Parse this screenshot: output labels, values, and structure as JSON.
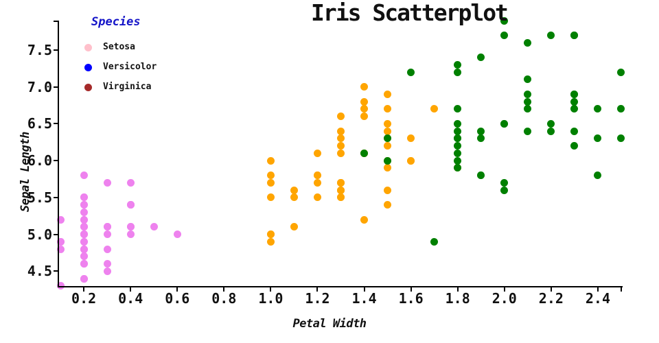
{
  "title": "Iris Scatterplot",
  "legend": {
    "title": "Species",
    "title_color": "#1414C8",
    "items": [
      {
        "label": "Setosa",
        "color": "#FFC0CB"
      },
      {
        "label": "Versicolor",
        "color": "#0000FF"
      },
      {
        "label": "Virginica",
        "color": "#A52A2A"
      }
    ]
  },
  "axes": {
    "xlabel": "Petal Width",
    "ylabel": "Sepal Length",
    "x_ticks": [
      "0.2",
      "0.4",
      "0.6",
      "0.8",
      "1.0",
      "1.2",
      "1.4",
      "1.6",
      "1.8",
      "2.0",
      "2.2",
      "2.4"
    ],
    "y_ticks": [
      "4.5",
      "5.0",
      "5.5",
      "6.0",
      "6.5",
      "7.0",
      "7.5"
    ]
  },
  "chart_data": {
    "type": "scatter",
    "title": "Iris Scatterplot",
    "xlabel": "Petal Width",
    "ylabel": "Sepal Length",
    "xlim": [
      0.091,
      2.503
    ],
    "ylim": [
      4.285,
      7.9
    ],
    "grid": false,
    "legend_position": "upper left",
    "series": [
      {
        "name": "Setosa",
        "color": "#EE82EE",
        "points": [
          [
            0.2,
            5.1
          ],
          [
            0.2,
            4.9
          ],
          [
            0.2,
            4.7
          ],
          [
            0.2,
            4.6
          ],
          [
            0.2,
            5.0
          ],
          [
            0.4,
            5.4
          ],
          [
            0.3,
            4.6
          ],
          [
            0.2,
            5.0
          ],
          [
            0.2,
            4.4
          ],
          [
            0.1,
            4.9
          ],
          [
            0.2,
            5.4
          ],
          [
            0.2,
            4.8
          ],
          [
            0.1,
            4.8
          ],
          [
            0.1,
            4.3
          ],
          [
            0.2,
            5.8
          ],
          [
            0.4,
            5.7
          ],
          [
            0.4,
            5.4
          ],
          [
            0.3,
            5.1
          ],
          [
            0.3,
            5.7
          ],
          [
            0.3,
            5.1
          ],
          [
            0.2,
            5.4
          ],
          [
            0.4,
            5.1
          ],
          [
            0.2,
            4.6
          ],
          [
            0.5,
            5.1
          ],
          [
            0.2,
            4.8
          ],
          [
            0.2,
            5.0
          ],
          [
            0.4,
            5.0
          ],
          [
            0.2,
            5.2
          ],
          [
            0.2,
            5.2
          ],
          [
            0.2,
            4.7
          ],
          [
            0.2,
            4.8
          ],
          [
            0.4,
            5.4
          ],
          [
            0.1,
            5.2
          ],
          [
            0.2,
            5.5
          ],
          [
            0.2,
            4.9
          ],
          [
            0.2,
            5.0
          ],
          [
            0.2,
            5.5
          ],
          [
            0.1,
            4.9
          ],
          [
            0.2,
            4.4
          ],
          [
            0.2,
            5.1
          ],
          [
            0.3,
            5.0
          ],
          [
            0.3,
            4.5
          ],
          [
            0.2,
            4.4
          ],
          [
            0.6,
            5.0
          ],
          [
            0.4,
            5.1
          ],
          [
            0.3,
            4.8
          ],
          [
            0.2,
            5.1
          ],
          [
            0.2,
            4.6
          ],
          [
            0.2,
            5.3
          ],
          [
            0.2,
            5.0
          ]
        ]
      },
      {
        "name": "Versicolor",
        "color": "#FFA500",
        "points": [
          [
            1.4,
            7.0
          ],
          [
            1.5,
            6.4
          ],
          [
            1.5,
            6.9
          ],
          [
            1.3,
            5.5
          ],
          [
            1.5,
            6.5
          ],
          [
            1.3,
            5.7
          ],
          [
            1.6,
            6.3
          ],
          [
            1.0,
            4.9
          ],
          [
            1.3,
            6.6
          ],
          [
            1.4,
            5.2
          ],
          [
            1.0,
            5.0
          ],
          [
            1.5,
            5.9
          ],
          [
            1.0,
            6.0
          ],
          [
            1.4,
            6.1
          ],
          [
            1.3,
            5.6
          ],
          [
            1.4,
            6.7
          ],
          [
            1.5,
            5.6
          ],
          [
            1.0,
            5.8
          ],
          [
            1.5,
            6.2
          ],
          [
            1.1,
            5.6
          ],
          [
            1.8,
            5.9
          ],
          [
            1.3,
            6.1
          ],
          [
            1.5,
            6.3
          ],
          [
            1.2,
            6.1
          ],
          [
            1.3,
            6.4
          ],
          [
            1.4,
            6.6
          ],
          [
            1.4,
            6.8
          ],
          [
            1.7,
            6.7
          ],
          [
            1.5,
            6.0
          ],
          [
            1.0,
            5.7
          ],
          [
            1.1,
            5.5
          ],
          [
            1.0,
            5.5
          ],
          [
            1.2,
            5.8
          ],
          [
            1.6,
            6.0
          ],
          [
            1.5,
            5.4
          ],
          [
            1.6,
            6.0
          ],
          [
            1.5,
            6.7
          ],
          [
            1.3,
            6.3
          ],
          [
            1.3,
            5.6
          ],
          [
            1.3,
            5.5
          ],
          [
            1.2,
            5.5
          ],
          [
            1.4,
            6.1
          ],
          [
            1.2,
            5.8
          ],
          [
            1.0,
            5.0
          ],
          [
            1.3,
            5.6
          ],
          [
            1.2,
            5.7
          ],
          [
            1.3,
            5.7
          ],
          [
            1.3,
            6.2
          ],
          [
            1.1,
            5.1
          ],
          [
            1.3,
            5.7
          ]
        ]
      },
      {
        "name": "Virginica",
        "color": "#008000",
        "points": [
          [
            2.5,
            6.3
          ],
          [
            1.9,
            5.8
          ],
          [
            2.1,
            7.1
          ],
          [
            1.8,
            6.3
          ],
          [
            2.2,
            6.5
          ],
          [
            2.1,
            7.6
          ],
          [
            1.7,
            4.9
          ],
          [
            1.8,
            7.3
          ],
          [
            1.8,
            6.7
          ],
          [
            2.5,
            7.2
          ],
          [
            2.0,
            6.5
          ],
          [
            1.9,
            6.4
          ],
          [
            2.1,
            6.8
          ],
          [
            2.0,
            5.7
          ],
          [
            2.4,
            5.8
          ],
          [
            2.3,
            6.4
          ],
          [
            1.8,
            6.5
          ],
          [
            2.2,
            7.7
          ],
          [
            2.3,
            7.7
          ],
          [
            1.5,
            6.0
          ],
          [
            2.3,
            6.9
          ],
          [
            2.0,
            5.6
          ],
          [
            2.0,
            7.7
          ],
          [
            1.8,
            6.3
          ],
          [
            2.1,
            6.7
          ],
          [
            1.8,
            7.2
          ],
          [
            1.8,
            6.2
          ],
          [
            1.8,
            6.1
          ],
          [
            2.1,
            6.4
          ],
          [
            1.6,
            7.2
          ],
          [
            1.9,
            7.4
          ],
          [
            2.0,
            7.9
          ],
          [
            2.2,
            6.4
          ],
          [
            1.5,
            6.3
          ],
          [
            1.4,
            6.1
          ],
          [
            2.3,
            7.7
          ],
          [
            2.4,
            6.3
          ],
          [
            1.8,
            6.4
          ],
          [
            1.8,
            6.0
          ],
          [
            2.1,
            6.9
          ],
          [
            2.4,
            6.7
          ],
          [
            2.3,
            6.9
          ],
          [
            1.9,
            5.8
          ],
          [
            2.3,
            6.8
          ],
          [
            2.5,
            6.7
          ],
          [
            2.3,
            6.7
          ],
          [
            1.9,
            6.3
          ],
          [
            2.0,
            6.5
          ],
          [
            2.3,
            6.2
          ],
          [
            1.8,
            5.9
          ]
        ]
      }
    ]
  }
}
